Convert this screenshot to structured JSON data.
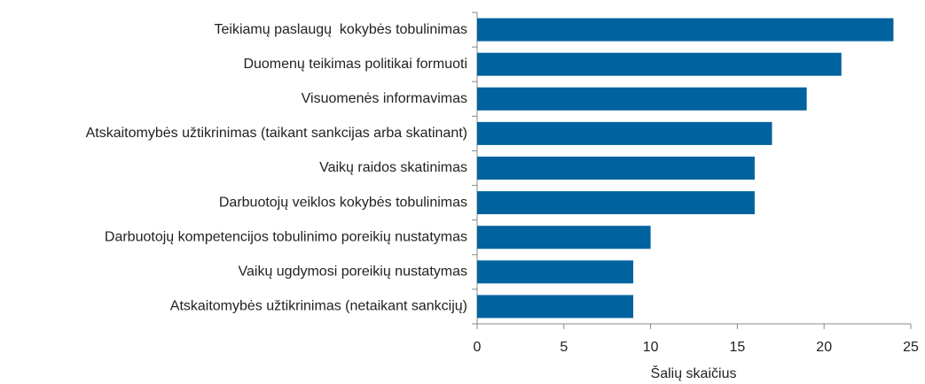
{
  "chart_data": {
    "type": "barh",
    "x_label": "Šalių skaičius",
    "categories": [
      "Teikiamų paslaugų  kokybės tobulinimas",
      "Duomenų teikimas politikai formuoti",
      "Visuomenės informavimas",
      "Atskaitomybės užtikrinimas (taikant sankcijas arba skatinant)",
      "Vaikų raidos skatinimas",
      "Darbuotojų veiklos kokybės tobulinimas",
      "Darbuotojų kompetencijos tobulinimo poreikių nustatymas",
      "Vaikų ugdymosi poreikių nustatymas",
      "Atskaitomybės užtikrinimas (netaikant sankcijų)"
    ],
    "values": [
      24,
      21,
      19,
      17,
      16,
      16,
      10,
      9,
      9
    ],
    "color": "#00629f",
    "xlim": [
      0,
      25
    ],
    "xticks": [
      0,
      5,
      10,
      15,
      20,
      25
    ],
    "grid": false
  }
}
